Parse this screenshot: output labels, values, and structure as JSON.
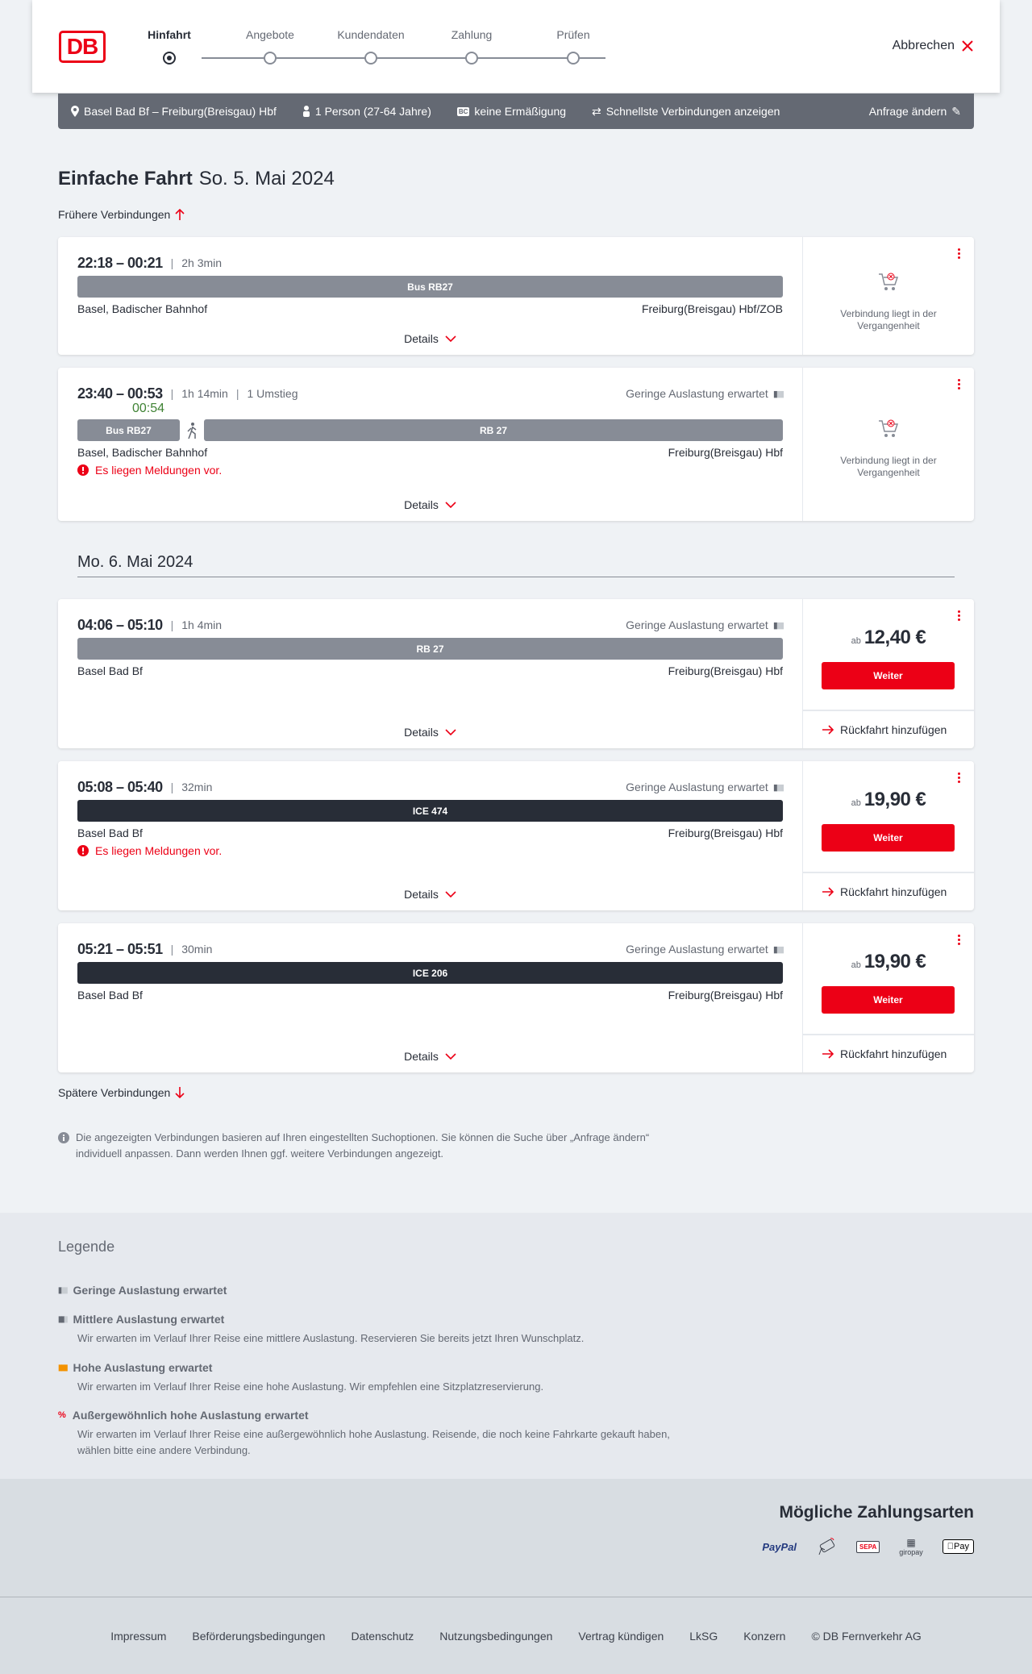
{
  "header": {
    "logo": "DB",
    "steps": [
      "Hinfahrt",
      "Angebote",
      "Kundendaten",
      "Zahlung",
      "Prüfen"
    ],
    "active_step": 0,
    "cancel": "Abbrechen"
  },
  "query": {
    "route": "Basel Bad Bf – Freiburg(Breisgau) Hbf",
    "passengers": "1 Person (27-64 Jahre)",
    "discount_badge": "BC",
    "discount": "keine Ermäßigung",
    "fastest": "Schnellste Verbindungen anzeigen",
    "change": "Anfrage ändern"
  },
  "title": {
    "type": "Einfache Fahrt",
    "date": "So. 5. Mai 2024"
  },
  "earlier": "Frühere Verbindungen",
  "later": "Spätere Verbindungen",
  "day2": "Mo. 6. Mai 2024",
  "labels": {
    "details": "Details",
    "past": "Verbindung liegt in der Vergangenheit",
    "ab": "ab",
    "weiter": "Weiter",
    "return": "Rückfahrt hinzufügen",
    "occupancy": "Geringe Auslastung erwartet",
    "message": "Es liegen Meldungen vor."
  },
  "connections": [
    {
      "times": "22:18 – 00:21",
      "duration": "2h 3min",
      "legs": [
        "Bus RB27"
      ],
      "from": "Basel, Badischer Bahnhof",
      "to": "Freiburg(Breisgau) Hbf/ZOB"
    },
    {
      "times": "23:40 – 00:53",
      "duration": "1h 14min",
      "transfers": "1 Umstieg",
      "realtime": "00:54",
      "legs": [
        "Bus RB27",
        "RB 27"
      ],
      "from": "Basel, Badischer Bahnhof",
      "to": "Freiburg(Breisgau) Hbf"
    },
    {
      "times": "04:06 – 05:10",
      "duration": "1h 4min",
      "legs": [
        "RB 27"
      ],
      "from": "Basel Bad Bf",
      "to": "Freiburg(Breisgau) Hbf",
      "price": "12,40 €"
    },
    {
      "times": "05:08 – 05:40",
      "duration": "32min",
      "legs": [
        "ICE 474"
      ],
      "from": "Basel Bad Bf",
      "to": "Freiburg(Breisgau) Hbf",
      "price": "19,90 €"
    },
    {
      "times": "05:21 – 05:51",
      "duration": "30min",
      "legs": [
        "ICE 206"
      ],
      "from": "Basel Bad Bf",
      "to": "Freiburg(Breisgau) Hbf",
      "price": "19,90 €"
    }
  ],
  "info": "Die angezeigten Verbindungen basieren auf Ihren eingestellten Suchoptionen. Sie können die Suche über „Anfrage ändern“ individuell anpassen. Dann werden Ihnen ggf. weitere Verbindungen angezeigt.",
  "legend": {
    "title": "Legende",
    "items": [
      {
        "title": "Geringe Auslastung erwartet",
        "text": ""
      },
      {
        "title": "Mittlere Auslastung erwartet",
        "text": "Wir erwarten im Verlauf Ihrer Reise eine mittlere Auslastung. Reservieren Sie bereits jetzt Ihren Wunschplatz."
      },
      {
        "title": "Hohe Auslastung erwartet",
        "text": "Wir erwarten im Verlauf Ihrer Reise eine hohe Auslastung. Wir empfehlen eine Sitzplatzreservierung."
      },
      {
        "title": "Außergewöhnlich hohe Auslastung erwartet",
        "text": "Wir erwarten im Verlauf Ihrer Reise eine außergewöhnlich hohe Auslastung. Reisende, die noch keine Fahrkarte gekauft haben, wählen bitte eine andere Verbindung."
      }
    ]
  },
  "payment": {
    "title": "Mögliche Zahlungsarten",
    "methods": [
      "PayPal",
      "SEPA",
      "giropay",
      "Pay"
    ]
  },
  "footer": [
    "Impressum",
    "Beförderungsbedingungen",
    "Datenschutz",
    "Nutzungsbedingungen",
    "Vertrag kündigen",
    "LkSG",
    "Konzern",
    "© DB Fernverkehr AG"
  ],
  "colors": {
    "brand": "#ec0016",
    "bar": "#878c96",
    "ice": "#282d37",
    "realtime": "#408335",
    "occ_high": "#f39200"
  }
}
